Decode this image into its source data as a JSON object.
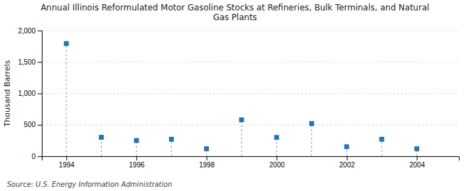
{
  "chart_data": {
    "type": "scatter",
    "title": "Annual Illinois Reformulated Motor Gasoline Stocks at Refineries, Bulk Terminals, and Natural\nGas Plants",
    "ylabel": "Thousand Barrels",
    "annotation": "Source: U.S. Energy Information Administration",
    "x": [
      1994,
      1995,
      1996,
      1997,
      1998,
      1999,
      2000,
      2001,
      2002,
      2003,
      2004
    ],
    "values": [
      1793,
      302,
      251,
      271,
      120,
      580,
      300,
      520,
      152,
      271,
      120
    ],
    "marker": "square",
    "xlim": [
      1993.3,
      2005.2
    ],
    "xticks": [
      1994,
      1996,
      1998,
      2000,
      2002,
      2004
    ],
    "ylim": [
      0,
      2000
    ],
    "yticks": [
      0,
      500,
      {
        "value": 1000,
        "label": "1,000"
      },
      {
        "value": 1500,
        "label": "1,500"
      },
      {
        "value": 2000,
        "label": "2,000"
      }
    ],
    "grid": true
  }
}
